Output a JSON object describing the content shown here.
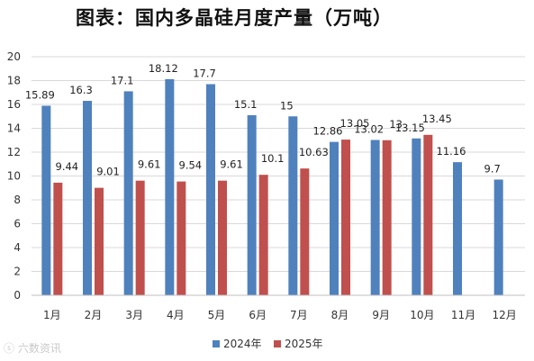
{
  "chart_data": {
    "type": "bar",
    "title": "图表：国内多晶硅月度产量（万吨）",
    "categories": [
      "1月",
      "2月",
      "3月",
      "4月",
      "5月",
      "6月",
      "7月",
      "8月",
      "9月",
      "10月",
      "11月",
      "12月"
    ],
    "series": [
      {
        "name": "2024年",
        "color": "#4f81bd",
        "values": [
          15.89,
          16.3,
          17.1,
          18.12,
          17.7,
          15.1,
          15,
          12.86,
          13.02,
          13.15,
          11.16,
          9.7
        ],
        "labels": [
          "15.89",
          "16.3",
          "17.1",
          "18.12",
          "17.7",
          "15.1",
          "15",
          "12.86",
          "13.02",
          "13.15",
          "11.16",
          "9.7"
        ]
      },
      {
        "name": "2025年",
        "color": "#c0504d",
        "values": [
          9.44,
          9.01,
          9.61,
          9.54,
          9.61,
          10.1,
          10.63,
          13.05,
          13,
          13.45,
          null,
          null
        ],
        "labels": [
          "9.44",
          "9.01",
          "9.61",
          "9.54",
          "9.61",
          "10.1",
          "10.63",
          "13.05",
          "13",
          "13.45",
          null,
          null
        ]
      }
    ],
    "y_ticks": [
      "0",
      "2",
      "4",
      "6",
      "8",
      "10",
      "12",
      "14",
      "16",
      "18",
      "20"
    ],
    "ylim": [
      0,
      20
    ],
    "grid": true,
    "legend_position": "bottom",
    "xlabel": "",
    "ylabel": ""
  },
  "watermark": "六数资讯"
}
